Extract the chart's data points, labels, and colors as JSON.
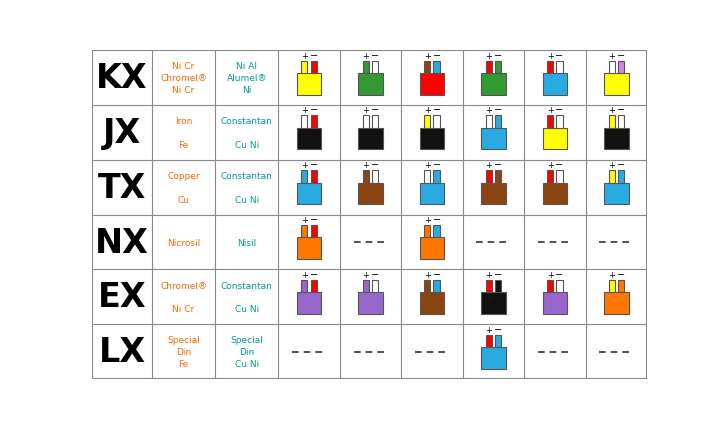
{
  "rows": [
    "KX",
    "JX",
    "TX",
    "NX",
    "EX",
    "LX"
  ],
  "col1_labels": [
    "Ni Cr\nChromel®\nNi Cr",
    "Iron\n\nFe",
    "Copper\n\nCu",
    "Nicrosil",
    "Chromel®\n\nNi Cr",
    "Special\nDin\nFe"
  ],
  "col2_labels": [
    "Ni Al\nAlumel®\nNi",
    "Constantan\n\nCu Ni",
    "Constantan\n\nCu Ni",
    "Nisil",
    "Constantan\n\nCu Ni",
    "Special\nDin\nCu Ni"
  ],
  "col1_text_color": "#FF6600",
  "col2_text_color": "#009999",
  "grid_color": "#888888",
  "bg_color": "#FFFFFF",
  "cells": [
    [
      {
        "type": "connector",
        "body": "#FFFF00",
        "pin_pos": "#FFFF00",
        "pin_neg": "#FF0000"
      },
      {
        "type": "connector",
        "body": "#339933",
        "pin_pos": "#339933",
        "pin_neg": "#FFFFFF"
      },
      {
        "type": "connector",
        "body": "#FF0000",
        "pin_pos": "#8B4513",
        "pin_neg": "#29ABE2"
      },
      {
        "type": "connector",
        "body": "#339933",
        "pin_pos": "#FF0000",
        "pin_neg": "#339933"
      },
      {
        "type": "connector",
        "body": "#29ABE2",
        "pin_pos": "#FF0000",
        "pin_neg": "#FFFFFF"
      },
      {
        "type": "connector",
        "body": "#FFFF00",
        "pin_pos": "#FFFFFF",
        "pin_neg": "#CC88DD"
      }
    ],
    [
      {
        "type": "connector",
        "body": "#111111",
        "pin_pos": "#FFFFFF",
        "pin_neg": "#FF0000"
      },
      {
        "type": "connector",
        "body": "#111111",
        "pin_pos": "#FFFFFF",
        "pin_neg": "#FFFFFF"
      },
      {
        "type": "connector",
        "body": "#111111",
        "pin_pos": "#FFFF00",
        "pin_neg": "#FFFFFF"
      },
      {
        "type": "connector",
        "body": "#29ABE2",
        "pin_pos": "#FFFFFF",
        "pin_neg": "#29ABE2"
      },
      {
        "type": "connector",
        "body": "#FFFF00",
        "pin_pos": "#FF0000",
        "pin_neg": "#FFFFFF"
      },
      {
        "type": "connector",
        "body": "#111111",
        "pin_pos": "#FFFF00",
        "pin_neg": "#FFFFFF"
      }
    ],
    [
      {
        "type": "connector",
        "body": "#29ABE2",
        "pin_pos": "#29ABE2",
        "pin_neg": "#FF0000"
      },
      {
        "type": "connector",
        "body": "#8B4513",
        "pin_pos": "#8B4513",
        "pin_neg": "#FFFFFF"
      },
      {
        "type": "connector",
        "body": "#29ABE2",
        "pin_pos": "#FFFFFF",
        "pin_neg": "#29ABE2"
      },
      {
        "type": "connector",
        "body": "#8B4513",
        "pin_pos": "#FF0000",
        "pin_neg": "#8B4513"
      },
      {
        "type": "connector",
        "body": "#8B4513",
        "pin_pos": "#FF0000",
        "pin_neg": "#FFFFFF"
      },
      {
        "type": "connector",
        "body": "#29ABE2",
        "pin_pos": "#FFFF00",
        "pin_neg": "#29ABE2"
      }
    ],
    [
      {
        "type": "connector",
        "body": "#FF7700",
        "pin_pos": "#FF7700",
        "pin_neg": "#FF0000"
      },
      {
        "type": "dash"
      },
      {
        "type": "connector",
        "body": "#FF7700",
        "pin_pos": "#FF7700",
        "pin_neg": "#29ABE2"
      },
      {
        "type": "dash"
      },
      {
        "type": "dash"
      },
      {
        "type": "dash"
      }
    ],
    [
      {
        "type": "connector",
        "body": "#9966CC",
        "pin_pos": "#9966CC",
        "pin_neg": "#FF0000"
      },
      {
        "type": "connector",
        "body": "#9966CC",
        "pin_pos": "#9966CC",
        "pin_neg": "#FFFFFF"
      },
      {
        "type": "connector",
        "body": "#8B4513",
        "pin_pos": "#8B4513",
        "pin_neg": "#29ABE2"
      },
      {
        "type": "connector",
        "body": "#111111",
        "pin_pos": "#FF0000",
        "pin_neg": "#111111"
      },
      {
        "type": "connector",
        "body": "#9966CC",
        "pin_pos": "#FF0000",
        "pin_neg": "#FFFFFF"
      },
      {
        "type": "connector",
        "body": "#FF7700",
        "pin_pos": "#FFFF00",
        "pin_neg": "#FF7700"
      }
    ],
    [
      {
        "type": "dash"
      },
      {
        "type": "dash"
      },
      {
        "type": "dash"
      },
      {
        "type": "connector",
        "body": "#29ABE2",
        "pin_pos": "#FF0000",
        "pin_neg": "#29ABE2"
      },
      {
        "type": "dash"
      },
      {
        "type": "dash"
      }
    ]
  ]
}
